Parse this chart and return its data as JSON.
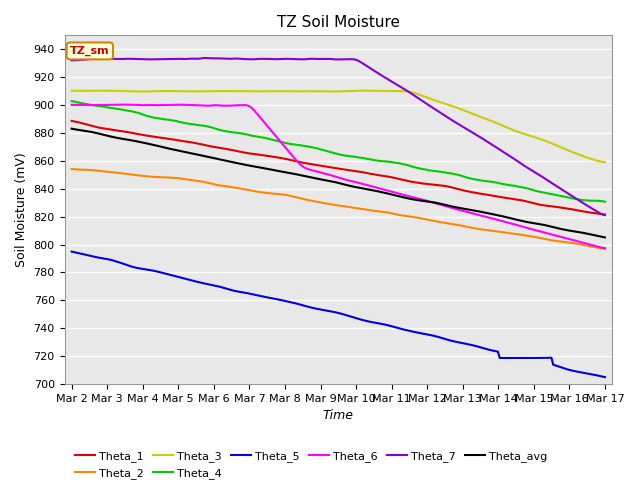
{
  "title": "TZ Soil Moisture",
  "xlabel": "Time",
  "ylabel": "Soil Moisture (mV)",
  "ylim": [
    700,
    950
  ],
  "background_color": "#e8e8e8",
  "fig_background": "#ffffff",
  "label_box_text": "TZ_sm",
  "label_box_bg": "#ffffdd",
  "label_box_edge": "#cc8800",
  "series_colors": {
    "Theta_1": "#dd0000",
    "Theta_2": "#ff8800",
    "Theta_3": "#cccc00",
    "Theta_4": "#00cc00",
    "Theta_5": "#0000dd",
    "Theta_6": "#ff00ff",
    "Theta_7": "#8800cc",
    "Theta_avg": "#000000"
  },
  "xtick_labels": [
    "Mar 2",
    "Mar 3",
    "Mar 4",
    "Mar 5",
    "Mar 6",
    "Mar 7",
    "Mar 8",
    "Mar 9",
    "Mar 10",
    "Mar 11",
    "Mar 12",
    "Mar 13",
    "Mar 14",
    "Mar 15",
    "Mar 16",
    "Mar 17"
  ],
  "ytick_values": [
    700,
    720,
    740,
    760,
    780,
    800,
    820,
    840,
    860,
    880,
    900,
    920,
    940
  ],
  "grid_color": "#ffffff",
  "title_fontsize": 11,
  "axis_label_fontsize": 9,
  "tick_fontsize": 8
}
